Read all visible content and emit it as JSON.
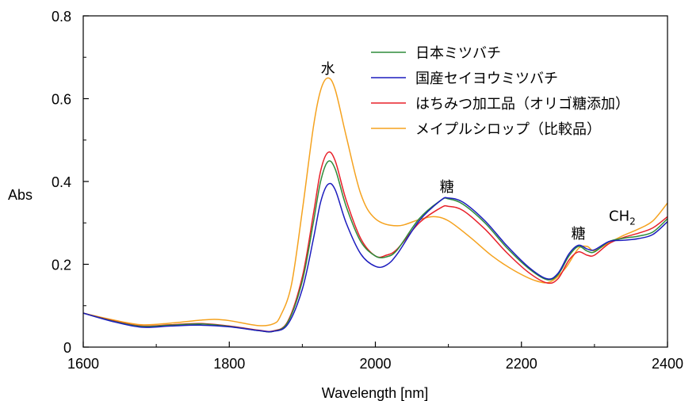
{
  "chart_data": {
    "type": "line",
    "title": "",
    "xlabel": "Wavelength [nm]",
    "ylabel": "Abs",
    "xlim": [
      1600,
      2400
    ],
    "ylim": [
      0,
      0.8
    ],
    "xticks": [
      1600,
      1800,
      2000,
      2200,
      2400
    ],
    "yticks": [
      0,
      0.2,
      0.4,
      0.6,
      0.8
    ],
    "xtick_labels": [
      "1600",
      "1800",
      "2000",
      "2200",
      "2400"
    ],
    "ytick_labels": [
      "0",
      "0.2",
      "0.4",
      "0.6",
      "0.8"
    ],
    "grid": false,
    "legend_position": "top-right",
    "series": [
      {
        "name": "日本ミツバチ",
        "color": "#2e8b3a",
        "x": [
          1600,
          1640,
          1680,
          1720,
          1760,
          1800,
          1840,
          1860,
          1880,
          1900,
          1915,
          1925,
          1935,
          1945,
          1960,
          1980,
          2000,
          2015,
          2030,
          2060,
          2090,
          2100,
          2120,
          2150,
          2180,
          2210,
          2235,
          2250,
          2265,
          2278,
          2290,
          2300,
          2320,
          2340,
          2360,
          2380,
          2400
        ],
        "y": [
          0.082,
          0.063,
          0.05,
          0.053,
          0.056,
          0.05,
          0.04,
          0.038,
          0.06,
          0.16,
          0.3,
          0.4,
          0.448,
          0.43,
          0.34,
          0.255,
          0.22,
          0.218,
          0.235,
          0.31,
          0.355,
          0.358,
          0.345,
          0.3,
          0.24,
          0.19,
          0.163,
          0.175,
          0.22,
          0.243,
          0.232,
          0.23,
          0.255,
          0.263,
          0.268,
          0.278,
          0.31
        ]
      },
      {
        "name": "国産セイヨウミツバチ",
        "color": "#1c1cbe",
        "x": [
          1600,
          1640,
          1680,
          1720,
          1760,
          1800,
          1840,
          1860,
          1880,
          1900,
          1915,
          1925,
          1935,
          1945,
          1960,
          1980,
          2000,
          2015,
          2030,
          2060,
          2090,
          2100,
          2120,
          2150,
          2180,
          2210,
          2235,
          2250,
          2265,
          2278,
          2290,
          2300,
          2320,
          2340,
          2360,
          2380,
          2400
        ],
        "y": [
          0.082,
          0.062,
          0.048,
          0.051,
          0.053,
          0.049,
          0.04,
          0.038,
          0.055,
          0.14,
          0.26,
          0.35,
          0.393,
          0.38,
          0.3,
          0.225,
          0.195,
          0.198,
          0.225,
          0.305,
          0.355,
          0.36,
          0.35,
          0.305,
          0.245,
          0.193,
          0.165,
          0.178,
          0.225,
          0.246,
          0.237,
          0.235,
          0.255,
          0.258,
          0.262,
          0.272,
          0.303
        ]
      },
      {
        "name": "はちみつ加工品（オリゴ糖添加）",
        "color": "#e8202a",
        "x": [
          1600,
          1640,
          1680,
          1720,
          1760,
          1800,
          1840,
          1860,
          1880,
          1900,
          1915,
          1925,
          1935,
          1945,
          1960,
          1980,
          2000,
          2015,
          2030,
          2060,
          2090,
          2100,
          2120,
          2150,
          2180,
          2210,
          2235,
          2250,
          2265,
          2278,
          2290,
          2300,
          2320,
          2340,
          2360,
          2380,
          2400
        ],
        "y": [
          0.082,
          0.064,
          0.051,
          0.054,
          0.057,
          0.051,
          0.041,
          0.039,
          0.062,
          0.17,
          0.32,
          0.425,
          0.47,
          0.45,
          0.355,
          0.262,
          0.22,
          0.222,
          0.237,
          0.3,
          0.337,
          0.34,
          0.33,
          0.285,
          0.228,
          0.18,
          0.155,
          0.165,
          0.21,
          0.23,
          0.222,
          0.222,
          0.25,
          0.265,
          0.275,
          0.288,
          0.315
        ]
      },
      {
        "name": "メイプルシロップ（比較品）",
        "color": "#f5a21e",
        "x": [
          1600,
          1640,
          1680,
          1720,
          1760,
          1780,
          1800,
          1840,
          1860,
          1870,
          1885,
          1900,
          1915,
          1925,
          1935,
          1945,
          1960,
          1980,
          2000,
          2030,
          2060,
          2080,
          2100,
          2130,
          2160,
          2190,
          2220,
          2240,
          2260,
          2278,
          2290,
          2300,
          2320,
          2340,
          2360,
          2380,
          2400
        ],
        "y": [
          0.082,
          0.066,
          0.054,
          0.058,
          0.065,
          0.067,
          0.064,
          0.052,
          0.056,
          0.075,
          0.15,
          0.33,
          0.53,
          0.62,
          0.65,
          0.622,
          0.51,
          0.37,
          0.31,
          0.293,
          0.308,
          0.315,
          0.305,
          0.265,
          0.22,
          0.185,
          0.16,
          0.158,
          0.19,
          0.238,
          0.243,
          0.233,
          0.252,
          0.27,
          0.285,
          0.305,
          0.348
        ]
      }
    ],
    "annotations": [
      {
        "text": "水",
        "x": 1935,
        "y": 0.66
      },
      {
        "text": "糖",
        "x": 2098,
        "y": 0.375
      },
      {
        "text": "糖",
        "x": 2278,
        "y": 0.262
      },
      {
        "text": "CH",
        "sub": "2",
        "x": 2338,
        "y": 0.305
      }
    ]
  }
}
